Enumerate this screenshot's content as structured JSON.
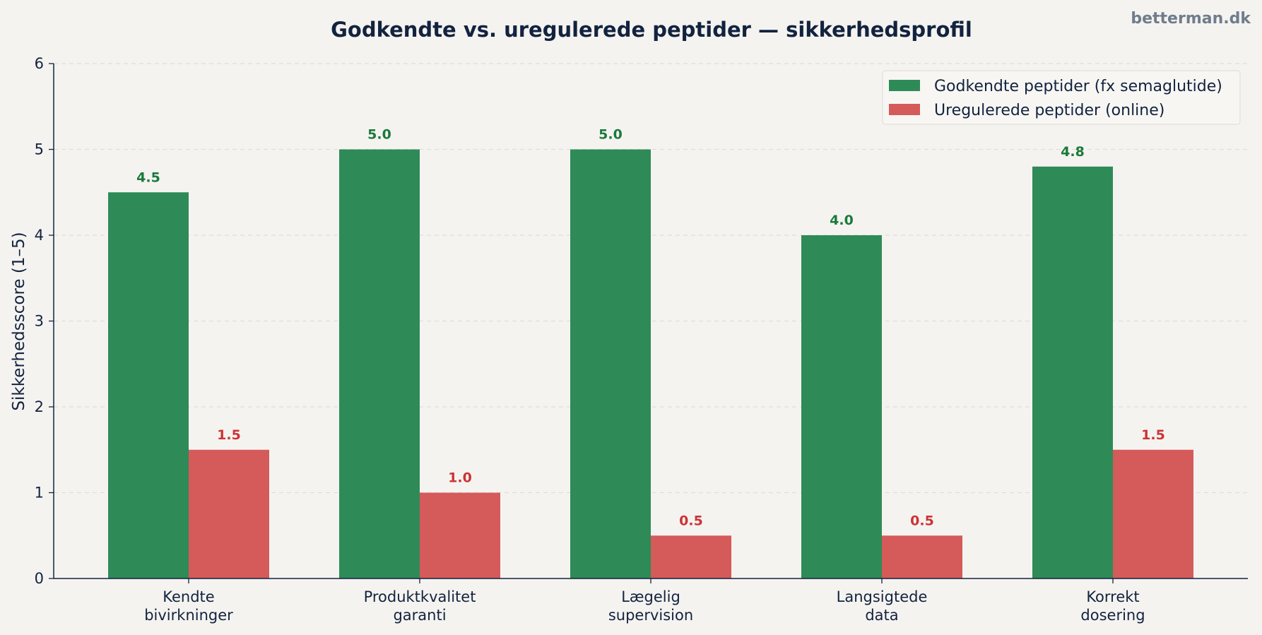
{
  "watermark": "betterman.dk",
  "chart_data": {
    "type": "bar",
    "title": "Godkendte vs. uregulerede peptider — sikkerhedsprofil",
    "xlabel": "",
    "ylabel": "Sikkerhedsscore (1–5)",
    "ylim": [
      0,
      6
    ],
    "yticks": [
      0,
      1,
      2,
      3,
      4,
      5,
      6
    ],
    "grid": "horizontal-dashed",
    "legend_position": "top-right",
    "categories": [
      [
        "Kendte",
        "bivirkninger"
      ],
      [
        "Produktkvalitet",
        "garanti"
      ],
      [
        "Lægelig",
        "supervision"
      ],
      [
        "Langsigtede",
        "data"
      ],
      [
        "Korrekt",
        "dosering"
      ]
    ],
    "series": [
      {
        "name": "Godkendte peptider (fx semaglutide)",
        "color": "#2e8b57",
        "label_color": "#1a7a3c",
        "values": [
          4.5,
          5.0,
          5.0,
          4.0,
          4.8
        ]
      },
      {
        "name": "Uregulerede peptider (online)",
        "color": "#d55a5a",
        "label_color": "#cc3333",
        "values": [
          1.5,
          1.0,
          0.5,
          0.5,
          1.5
        ]
      }
    ]
  }
}
